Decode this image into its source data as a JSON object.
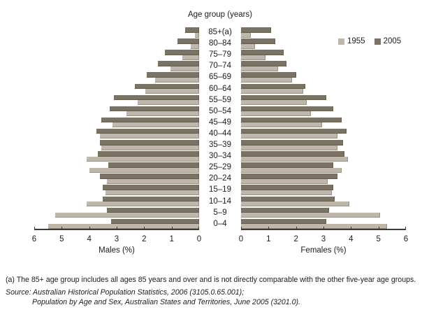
{
  "title": "Age group (years)",
  "legend": {
    "items": [
      {
        "label": "1955",
        "color": "#c0b7ac"
      },
      {
        "label": "2005",
        "color": "#7a7263"
      }
    ]
  },
  "axis": {
    "males_label": "Males (%)",
    "females_label": "Females (%)",
    "males_ticks": [
      "6",
      "5",
      "4",
      "3",
      "2",
      "1",
      "0"
    ],
    "females_ticks": [
      "0",
      "1",
      "2",
      "3",
      "4",
      "5",
      "6"
    ],
    "max": 6
  },
  "footnote": "(a) The 85+ age group includes all ages 85 years and over and is not directly comparable with the other five-year age groups.",
  "source": {
    "line1": "Source: Australian Historical Population Statistics, 2006 (3105.0.65.001);",
    "line2": "Population by Age and Sex, Australian States and Territories, June 2005 (3201.0)."
  },
  "chart_data": {
    "type": "bar",
    "subtype": "population-pyramid",
    "title": "Age group (years)",
    "unit": "% of total population",
    "xlabel_left": "Males (%)",
    "xlabel_right": "Females (%)",
    "xlim": [
      0,
      6
    ],
    "grid": false,
    "legend_position": "top-right",
    "categories_top_to_bottom": [
      "85+(a)",
      "80–84",
      "75–79",
      "70–74",
      "65–69",
      "60–64",
      "55–59",
      "50–54",
      "45–49",
      "40–44",
      "35–39",
      "30–34",
      "25–29",
      "20–24",
      "15–19",
      "10–14",
      "5–9",
      "0–4"
    ],
    "series": [
      {
        "name": "Males 1955",
        "side": "left",
        "year": "1955",
        "color": "#c0b7ac",
        "values": [
          0.15,
          0.3,
          0.6,
          1.05,
          1.6,
          1.95,
          2.25,
          2.65,
          3.15,
          3.6,
          3.55,
          4.1,
          4.0,
          3.35,
          3.4,
          4.1,
          5.25,
          5.5
        ]
      },
      {
        "name": "Males 2005",
        "side": "left",
        "year": "2005",
        "color": "#7a7263",
        "values": [
          0.5,
          0.8,
          1.25,
          1.5,
          1.9,
          2.35,
          3.1,
          3.25,
          3.55,
          3.75,
          3.6,
          3.7,
          3.3,
          3.6,
          3.5,
          3.5,
          3.35,
          3.2
        ]
      },
      {
        "name": "Females 1955",
        "side": "right",
        "year": "1955",
        "color": "#c0b7ac",
        "values": [
          0.35,
          0.5,
          0.9,
          1.35,
          1.85,
          2.25,
          2.4,
          2.55,
          2.95,
          3.5,
          3.5,
          3.9,
          3.65,
          3.15,
          3.3,
          3.95,
          5.05,
          5.3
        ]
      },
      {
        "name": "Females 2005",
        "side": "right",
        "year": "2005",
        "color": "#7a7263",
        "values": [
          1.1,
          1.25,
          1.55,
          1.65,
          2.0,
          2.35,
          3.1,
          3.35,
          3.65,
          3.85,
          3.7,
          3.75,
          3.35,
          3.5,
          3.35,
          3.4,
          3.2,
          3.1
        ]
      }
    ]
  }
}
